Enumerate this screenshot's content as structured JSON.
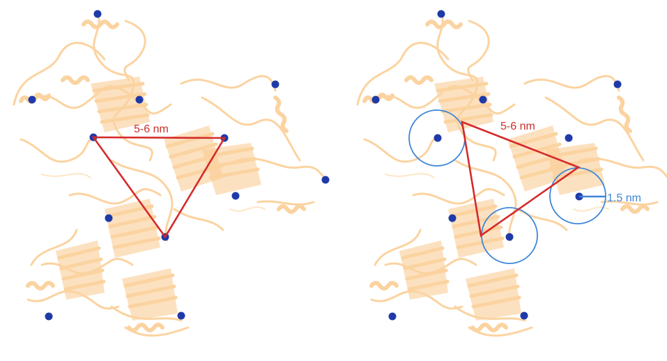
{
  "panels": [
    {
      "id": "left",
      "distance_label": "5-6 nm"
    },
    {
      "id": "right",
      "distance_label": "5-6 nm",
      "radius_label": "1.5 nm"
    }
  ],
  "colors": {
    "protein": "#fbd3a0",
    "site_marker": "#1f3aa8",
    "triangle": "#d42a2a",
    "radius_circle": "#3d86d8"
  }
}
